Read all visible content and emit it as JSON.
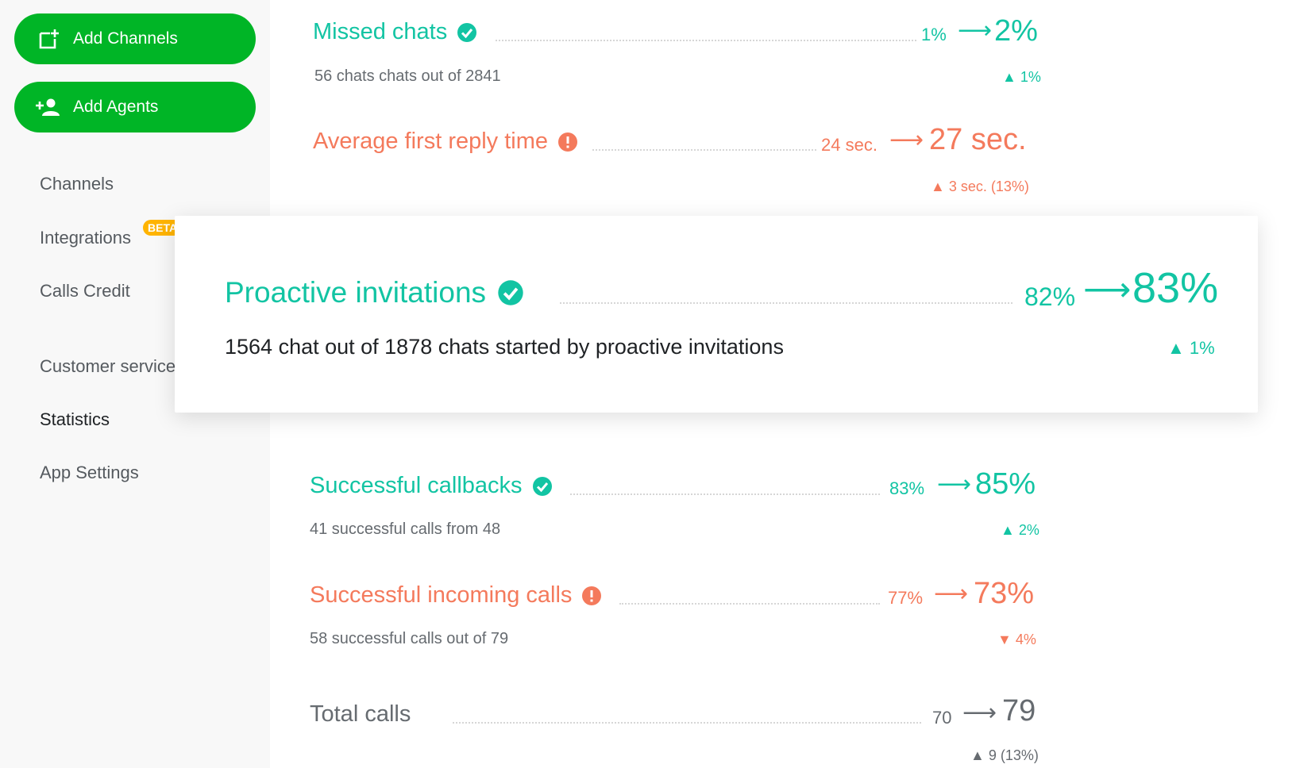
{
  "sidebar": {
    "add_channels": "Add Channels",
    "add_agents": "Add Agents",
    "items": [
      {
        "label": "Channels"
      },
      {
        "label": "Integrations",
        "badge": "BETA"
      },
      {
        "label": "Calls Credit"
      },
      {
        "label": "Customer service"
      },
      {
        "label": "Statistics"
      },
      {
        "label": "App Settings"
      }
    ]
  },
  "metrics": {
    "missed_chats": {
      "title": "Missed chats",
      "status": "ok",
      "prev": "1%",
      "arrow": "⟶",
      "current": "2%",
      "subtitle": "56 chats chats out of 2841",
      "delta": "▲ 1%"
    },
    "avg_first_reply": {
      "title": "Average first reply time",
      "status": "warning",
      "prev": "24 sec.",
      "arrow": "⟶",
      "current": "27 sec.",
      "delta": "▲ 3 sec. (13%)"
    },
    "proactive_invitations": {
      "title": "Proactive invitations",
      "status": "ok",
      "prev": "82%",
      "arrow": "⟶",
      "current": "83%",
      "subtitle": "1564 chat out of 1878 chats started by proactive invitations",
      "delta": "▲ 1%"
    },
    "successful_callbacks": {
      "title": "Successful callbacks",
      "status": "ok",
      "prev": "83%",
      "arrow": "⟶",
      "current": "85%",
      "subtitle": "41 successful calls from 48",
      "delta": "▲ 2%"
    },
    "successful_incoming": {
      "title": "Successful incoming calls",
      "status": "warning",
      "prev": "77%",
      "arrow": "⟶",
      "current": "73%",
      "subtitle": "58 successful calls out of 79",
      "delta": "▼ 4%"
    },
    "total_calls": {
      "title": "Total calls",
      "status": "neutral",
      "prev": "70",
      "arrow": "⟶",
      "current": "79",
      "delta": "▲ 9 (13%)"
    }
  },
  "colors": {
    "accent_green": "#00b526",
    "teal": "#12c4a3",
    "coral": "#f47a5c",
    "beta_badge": "#ffb400",
    "sidebar_bg": "#f8f8f8"
  },
  "icons": {
    "add_channels": "add-channel-icon",
    "add_agents": "add-person-icon",
    "ok": "check-circle-icon",
    "warning": "exclamation-circle-icon"
  }
}
